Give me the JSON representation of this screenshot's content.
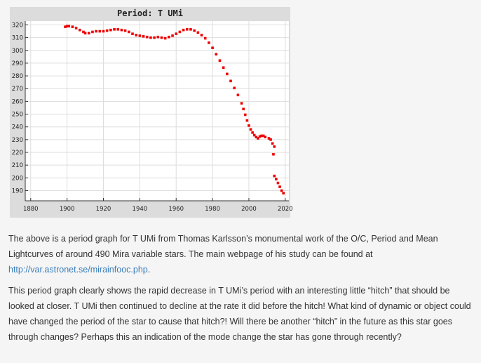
{
  "colors": {
    "panel_bg": "#dcdcdc",
    "plot_bg": "#ffffff",
    "grid": "#dddddd",
    "series": "#ee0000",
    "link": "#3a7dbb",
    "text": "#333333"
  },
  "chart_data": {
    "type": "scatter",
    "title": "Period: T UMi",
    "xlabel": "",
    "ylabel": "",
    "xlim": [
      1877,
      2022
    ],
    "ylim": [
      182,
      323
    ],
    "xticks": [
      1880,
      1900,
      1920,
      1940,
      1960,
      1980,
      2000,
      2020
    ],
    "yticks": [
      190,
      200,
      210,
      220,
      230,
      240,
      250,
      260,
      270,
      280,
      290,
      300,
      310,
      320
    ],
    "grid": true,
    "legend": "none",
    "series": [
      {
        "color": "#ee0000",
        "points": [
          [
            1899,
            318.5
          ],
          [
            1900,
            319
          ],
          [
            1901,
            319
          ],
          [
            1903,
            318.5
          ],
          [
            1905,
            317.5
          ],
          [
            1907,
            316
          ],
          [
            1909,
            314.5
          ],
          [
            1910,
            313.5
          ],
          [
            1912,
            313.5
          ],
          [
            1914,
            314.5
          ],
          [
            1916,
            315
          ],
          [
            1918,
            315
          ],
          [
            1920,
            315
          ],
          [
            1922,
            315.5
          ],
          [
            1924,
            316
          ],
          [
            1926,
            316.5
          ],
          [
            1928,
            316.5
          ],
          [
            1930,
            316
          ],
          [
            1932,
            315.5
          ],
          [
            1934,
            314.5
          ],
          [
            1936,
            313
          ],
          [
            1938,
            312
          ],
          [
            1940,
            311.5
          ],
          [
            1942,
            311
          ],
          [
            1944,
            310.5
          ],
          [
            1946,
            310
          ],
          [
            1948,
            310
          ],
          [
            1950,
            310.5
          ],
          [
            1952,
            310
          ],
          [
            1954,
            309.5
          ],
          [
            1956,
            310.5
          ],
          [
            1958,
            311.5
          ],
          [
            1960,
            313
          ],
          [
            1962,
            314.5
          ],
          [
            1964,
            316
          ],
          [
            1966,
            316.5
          ],
          [
            1968,
            316.5
          ],
          [
            1970,
            315.5
          ],
          [
            1972,
            314
          ],
          [
            1974,
            312
          ],
          [
            1976,
            309.5
          ],
          [
            1978,
            306
          ],
          [
            1980,
            302
          ],
          [
            1982,
            297
          ],
          [
            1984,
            292
          ],
          [
            1986,
            286.5
          ],
          [
            1988,
            281.5
          ],
          [
            1990,
            276
          ],
          [
            1992,
            270.5
          ],
          [
            1994,
            265
          ],
          [
            1996,
            258.5
          ],
          [
            1997,
            254
          ],
          [
            1998,
            249.5
          ],
          [
            1999,
            245
          ],
          [
            2000,
            241
          ],
          [
            2001,
            238
          ],
          [
            2002,
            235.5
          ],
          [
            2003,
            233.5
          ],
          [
            2004,
            232
          ],
          [
            2005,
            231
          ],
          [
            2006,
            232.5
          ],
          [
            2007,
            233
          ],
          [
            2008,
            233
          ],
          [
            2009,
            232
          ],
          [
            2011,
            231
          ],
          [
            2012,
            230
          ],
          [
            2013,
            227
          ],
          [
            2014,
            224.5
          ],
          [
            2013.5,
            218.5
          ],
          [
            2014,
            201.5
          ],
          [
            2015,
            199
          ],
          [
            2016,
            196
          ],
          [
            2017,
            193
          ],
          [
            2018,
            190
          ],
          [
            2019,
            188
          ]
        ]
      }
    ]
  },
  "article": {
    "p1_text": "The above is a period graph for T UMi from Thomas Karlsson’s monumental work of the O/C, Period and Mean Lightcurves of around 490 Mira variable stars.  The main webpage of his study can be found at ",
    "p1_link": "http://var.astronet.se/mirainfooc.php",
    "p1_end": ".",
    "p2_text": "This period graph clearly shows the rapid decrease in T UMi’s  period with an interesting little “hitch” that should be looked at closer. T UMi then continued to decline at the rate it did before the hitch!  What kind of dynamic or object could have changed the period of the star to cause that hitch?!  Will there be another “hitch” in the future as this star goes through changes? Perhaps this an indication of the mode change the star has gone through recently?"
  }
}
